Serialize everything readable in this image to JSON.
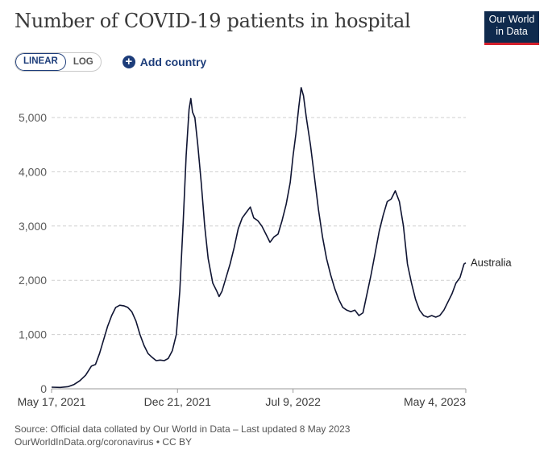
{
  "header": {
    "title": "Number of COVID-19 patients in hospital",
    "logo_line1": "Our World",
    "logo_line2": "in Data"
  },
  "controls": {
    "linear_label": "LINEAR",
    "log_label": "LOG",
    "add_country_label": "Add country"
  },
  "footer": {
    "source": "Source: Official data collated by Our World in Data – Last updated 8 May 2023",
    "url": "OurWorldInData.org/coronavirus • CC BY"
  },
  "chart_data": {
    "type": "line",
    "title": "Number of COVID-19 patients in hospital",
    "xlabel": "",
    "ylabel": "",
    "scale": "linear",
    "ylim": [
      0,
      5600
    ],
    "y_ticks": [
      0,
      1000,
      2000,
      3000,
      4000,
      5000
    ],
    "y_tick_labels": [
      "0",
      "1,000",
      "2,000",
      "3,000",
      "4,000",
      "5,000"
    ],
    "x_tick_labels": [
      "May 17, 2021",
      "Dec 21, 2021",
      "Jul 9, 2022",
      "May 4, 2023"
    ],
    "x_tick_dates": [
      "2021-05-17",
      "2021-12-21",
      "2022-07-09",
      "2023-05-04"
    ],
    "grid": "horizontal dashed",
    "series": [
      {
        "name": "Australia",
        "color": "#0f1432",
        "points": [
          [
            "2021-05-17",
            30
          ],
          [
            "2021-06-01",
            25
          ],
          [
            "2021-06-15",
            40
          ],
          [
            "2021-06-25",
            80
          ],
          [
            "2021-07-05",
            150
          ],
          [
            "2021-07-15",
            250
          ],
          [
            "2021-07-25",
            420
          ],
          [
            "2021-08-01",
            450
          ],
          [
            "2021-08-08",
            650
          ],
          [
            "2021-08-15",
            900
          ],
          [
            "2021-08-22",
            1150
          ],
          [
            "2021-08-29",
            1350
          ],
          [
            "2021-09-05",
            1500
          ],
          [
            "2021-09-12",
            1540
          ],
          [
            "2021-09-19",
            1530
          ],
          [
            "2021-09-26",
            1500
          ],
          [
            "2021-10-03",
            1420
          ],
          [
            "2021-10-10",
            1250
          ],
          [
            "2021-10-17",
            1000
          ],
          [
            "2021-10-24",
            800
          ],
          [
            "2021-10-31",
            650
          ],
          [
            "2021-11-07",
            580
          ],
          [
            "2021-11-14",
            520
          ],
          [
            "2021-11-21",
            530
          ],
          [
            "2021-11-28",
            520
          ],
          [
            "2021-12-05",
            560
          ],
          [
            "2021-12-12",
            700
          ],
          [
            "2021-12-19",
            1000
          ],
          [
            "2021-12-25",
            1800
          ],
          [
            "2021-12-31",
            3100
          ],
          [
            "2022-01-05",
            4300
          ],
          [
            "2022-01-10",
            5150
          ],
          [
            "2022-01-13",
            5350
          ],
          [
            "2022-01-16",
            5100
          ],
          [
            "2022-01-20",
            5000
          ],
          [
            "2022-01-25",
            4500
          ],
          [
            "2022-01-31",
            3800
          ],
          [
            "2022-02-06",
            3000
          ],
          [
            "2022-02-12",
            2400
          ],
          [
            "2022-02-20",
            1950
          ],
          [
            "2022-02-27",
            1800
          ],
          [
            "2022-03-03",
            1700
          ],
          [
            "2022-03-08",
            1800
          ],
          [
            "2022-03-15",
            2050
          ],
          [
            "2022-03-22",
            2300
          ],
          [
            "2022-03-29",
            2600
          ],
          [
            "2022-04-05",
            2950
          ],
          [
            "2022-04-12",
            3150
          ],
          [
            "2022-04-19",
            3250
          ],
          [
            "2022-04-26",
            3350
          ],
          [
            "2022-05-02",
            3150
          ],
          [
            "2022-05-09",
            3100
          ],
          [
            "2022-05-16",
            3000
          ],
          [
            "2022-05-23",
            2850
          ],
          [
            "2022-05-30",
            2700
          ],
          [
            "2022-06-06",
            2800
          ],
          [
            "2022-06-13",
            2850
          ],
          [
            "2022-06-20",
            3100
          ],
          [
            "2022-06-27",
            3400
          ],
          [
            "2022-07-04",
            3800
          ],
          [
            "2022-07-09",
            4300
          ],
          [
            "2022-07-14",
            4700
          ],
          [
            "2022-07-19",
            5200
          ],
          [
            "2022-07-23",
            5550
          ],
          [
            "2022-07-27",
            5400
          ],
          [
            "2022-08-01",
            5000
          ],
          [
            "2022-08-08",
            4500
          ],
          [
            "2022-08-15",
            3900
          ],
          [
            "2022-08-22",
            3300
          ],
          [
            "2022-08-29",
            2800
          ],
          [
            "2022-09-05",
            2400
          ],
          [
            "2022-09-12",
            2100
          ],
          [
            "2022-09-19",
            1850
          ],
          [
            "2022-09-26",
            1650
          ],
          [
            "2022-10-03",
            1500
          ],
          [
            "2022-10-10",
            1450
          ],
          [
            "2022-10-17",
            1420
          ],
          [
            "2022-10-24",
            1450
          ],
          [
            "2022-10-31",
            1350
          ],
          [
            "2022-11-07",
            1400
          ],
          [
            "2022-11-14",
            1750
          ],
          [
            "2022-11-21",
            2100
          ],
          [
            "2022-11-28",
            2500
          ],
          [
            "2022-12-05",
            2900
          ],
          [
            "2022-12-12",
            3200
          ],
          [
            "2022-12-19",
            3450
          ],
          [
            "2022-12-26",
            3500
          ],
          [
            "2023-01-02",
            3650
          ],
          [
            "2023-01-09",
            3450
          ],
          [
            "2023-01-16",
            3000
          ],
          [
            "2023-01-23",
            2300
          ],
          [
            "2023-01-30",
            1950
          ],
          [
            "2023-02-06",
            1650
          ],
          [
            "2023-02-13",
            1450
          ],
          [
            "2023-02-20",
            1350
          ],
          [
            "2023-02-27",
            1320
          ],
          [
            "2023-03-06",
            1350
          ],
          [
            "2023-03-13",
            1320
          ],
          [
            "2023-03-20",
            1350
          ],
          [
            "2023-03-27",
            1450
          ],
          [
            "2023-04-03",
            1600
          ],
          [
            "2023-04-10",
            1750
          ],
          [
            "2023-04-17",
            1950
          ],
          [
            "2023-04-24",
            2050
          ],
          [
            "2023-05-01",
            2300
          ],
          [
            "2023-05-04",
            2320
          ]
        ]
      }
    ]
  }
}
